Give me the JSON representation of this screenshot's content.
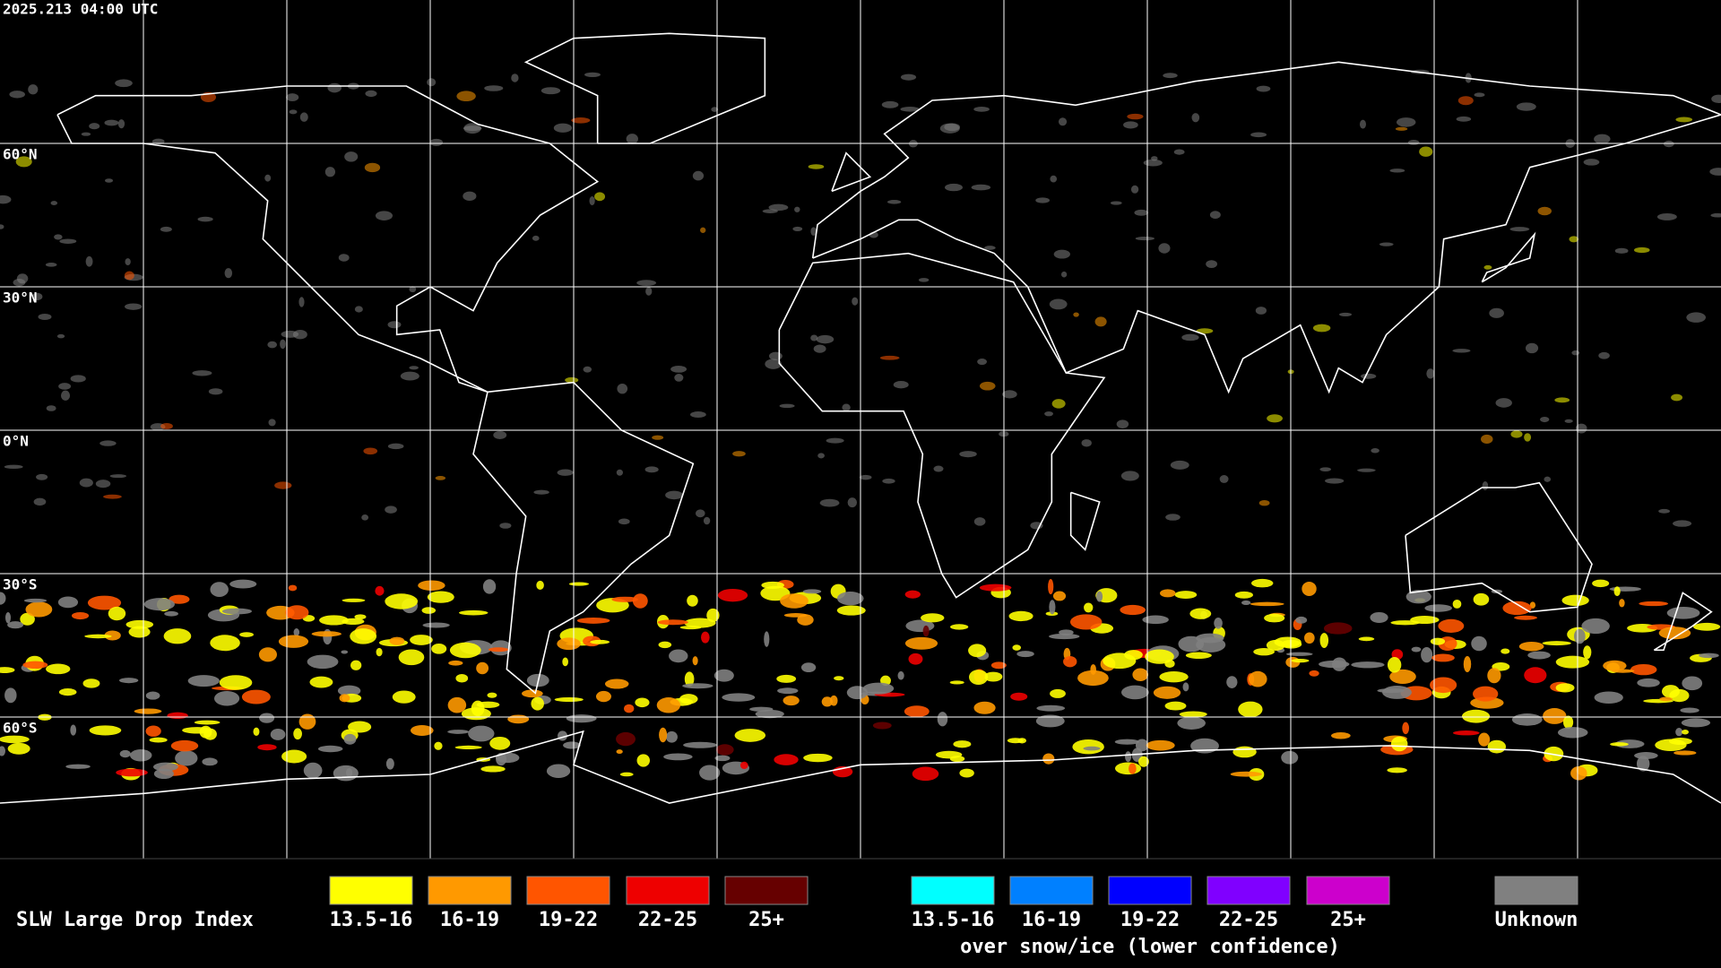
{
  "timestamp": "2025.213 04:00 UTC",
  "lat_labels": [
    "60°N",
    "30°N",
    "0°N",
    "30°S",
    "60°S"
  ],
  "legend": {
    "title": "SLW Large Drop Index",
    "items": [
      {
        "label": "13.5-16",
        "color": "#ffff00"
      },
      {
        "label": "16-19",
        "color": "#ff9900"
      },
      {
        "label": "19-22",
        "color": "#ff5500"
      },
      {
        "label": "22-25",
        "color": "#ee0000"
      },
      {
        "label": "25+",
        "color": "#660000"
      }
    ],
    "snow_ice_items": [
      {
        "label": "13.5-16",
        "color": "#00ffff"
      },
      {
        "label": "16-19",
        "color": "#0080ff"
      },
      {
        "label": "19-22",
        "color": "#0000ff"
      },
      {
        "label": "22-25",
        "color": "#8000ff"
      },
      {
        "label": "25+",
        "color": "#cc00cc"
      }
    ],
    "snow_ice_caption": "over snow/ice (lower confidence)",
    "unknown": {
      "label": "Unknown",
      "color": "#808080"
    }
  }
}
